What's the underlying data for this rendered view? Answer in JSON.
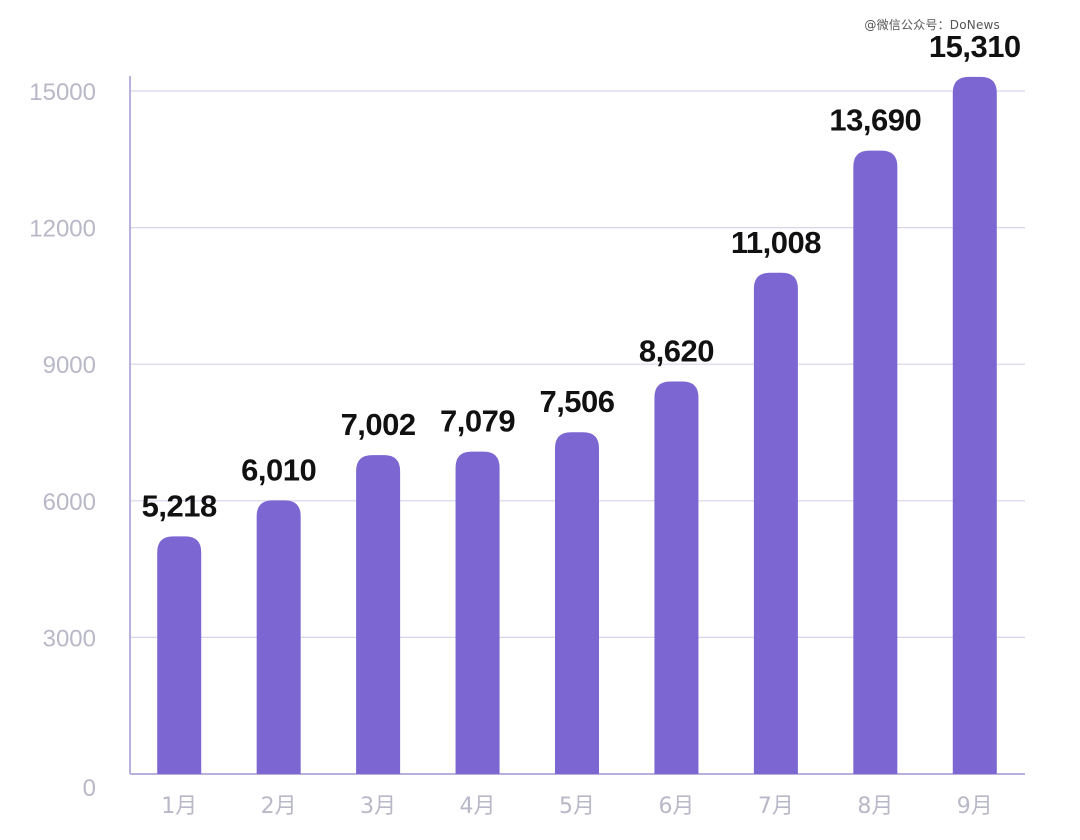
{
  "watermark": "@微信公众号：DoNews",
  "chart_data": {
    "type": "bar",
    "categories": [
      "1月",
      "2月",
      "3月",
      "4月",
      "5月",
      "6月",
      "7月",
      "8月",
      "9月"
    ],
    "values": [
      5218,
      6010,
      7002,
      7079,
      7506,
      8620,
      11008,
      13690,
      15310
    ],
    "value_labels": [
      "5,218",
      "6,010",
      "7,002",
      "7,079",
      "7,506",
      "8,620",
      "11,008",
      "13,690",
      "15,310"
    ],
    "yticks": [
      "0",
      "3000",
      "6000",
      "9000",
      "12000",
      "15000"
    ],
    "ylim": [
      0,
      16000
    ],
    "grid": true,
    "bar_color": "#7B66D2",
    "grid_color": "#D9D4EC",
    "axis_color": "#B9B0DC",
    "tick_label_color": "#B8B8C8",
    "value_label_color": "#111111"
  }
}
